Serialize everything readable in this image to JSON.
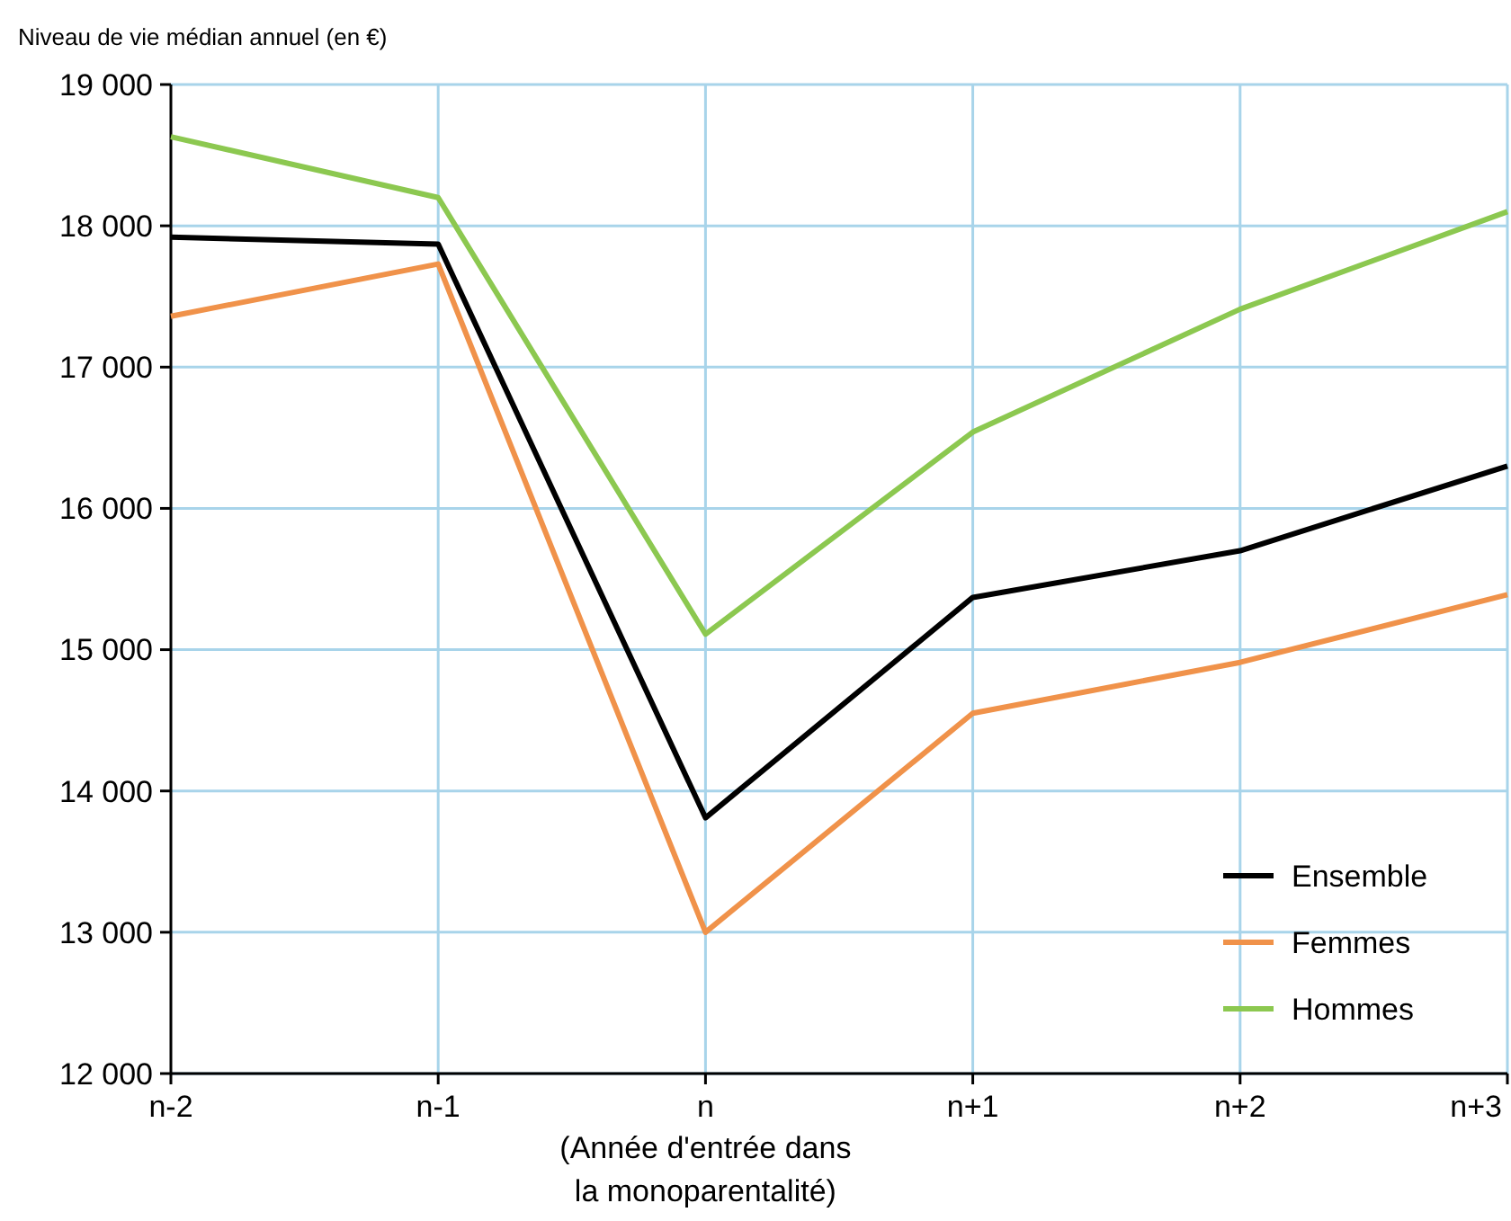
{
  "chart_data": {
    "type": "line",
    "ylabel": "Niveau de vie médian annuel (en €)",
    "categories": [
      "n-2",
      "n-1",
      "n",
      "n+1",
      "n+2",
      "n+3"
    ],
    "series": [
      {
        "name": "Ensemble",
        "color": "#000000",
        "values": [
          17920,
          17870,
          13810,
          15370,
          15700,
          16300
        ]
      },
      {
        "name": "Femmes",
        "color": "#f0924a",
        "values": [
          17360,
          17730,
          13000,
          14550,
          14910,
          15390
        ]
      },
      {
        "name": "Hommes",
        "color": "#8cc850",
        "values": [
          18630,
          18200,
          15110,
          16540,
          17410,
          18100
        ]
      }
    ],
    "ylim": [
      12000,
      19000
    ],
    "yticks": [
      {
        "value": 12000,
        "label": "12 000"
      },
      {
        "value": 13000,
        "label": "13 000"
      },
      {
        "value": 14000,
        "label": "14 000"
      },
      {
        "value": 15000,
        "label": "15 000"
      },
      {
        "value": 16000,
        "label": "16 000"
      },
      {
        "value": 17000,
        "label": "17 000"
      },
      {
        "value": 18000,
        "label": "18 000"
      },
      {
        "value": 19000,
        "label": "19 000"
      }
    ],
    "annotations": [
      "(Année d'entrée dans la monoparentalité)"
    ],
    "grid": true,
    "legend": "bottom right",
    "marker": "none",
    "line_style": "solid"
  }
}
